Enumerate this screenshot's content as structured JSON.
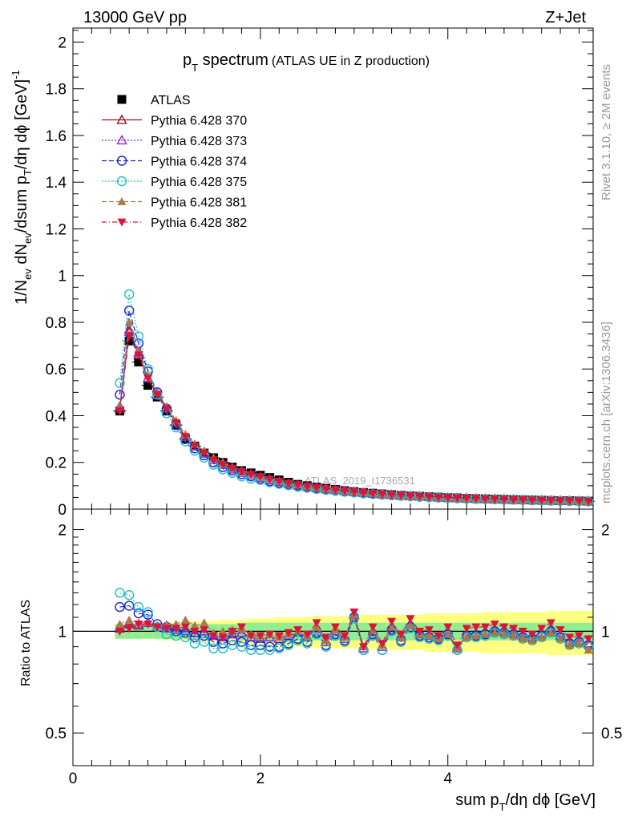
{
  "header": {
    "left": "13000 GeV pp",
    "right": "Z+Jet"
  },
  "plot_title": {
    "main": "p",
    "sub": "T",
    "rest": " spectrum",
    "detail": "(ATLAS UE in Z production)"
  },
  "side_labels": {
    "rivet": "Rivet 3.1.10, ≥ 2M events",
    "mcplots": "mcplots.cern.ch [arXiv:1306.3436]"
  },
  "watermark": "ATLAS_2019_I1736531",
  "colors": {
    "ATLAS": "#000000",
    "p370": "#8b1a1a",
    "p373": "#8a2be2",
    "p374": "#1c1cd6",
    "p375": "#20c0c0",
    "p381": "#a87a48",
    "p382": "#dc143c",
    "band_inner": "#90ee90",
    "band_outer": "#ffff80"
  },
  "chart_data": [
    {
      "type": "line",
      "title": "pT spectrum (ATLAS UE in Z production)",
      "xlabel": "sum pT/dη dφ [GeV]",
      "ylabel": "1/Nev dNev/dsum pT/dη dφ [GeV]^-1",
      "xlim": [
        0,
        5.55
      ],
      "ylim": [
        0,
        2.06
      ],
      "x_ticks": [
        0,
        2,
        4
      ],
      "y_ticks": [
        "0",
        "0.2",
        "0.4",
        "0.6",
        "0.8",
        "1",
        "1.2",
        "1.4",
        "1.6",
        "1.8",
        "2"
      ],
      "legend_position": "top-left",
      "x": [
        0.5,
        0.6,
        0.7,
        0.8,
        0.9,
        1.0,
        1.1,
        1.2,
        1.3,
        1.4,
        1.5,
        1.6,
        1.7,
        1.8,
        1.9,
        2.0,
        2.1,
        2.2,
        2.3,
        2.4,
        2.5,
        2.6,
        2.7,
        2.8,
        2.9,
        3.0,
        3.1,
        3.2,
        3.3,
        3.4,
        3.5,
        3.6,
        3.7,
        3.8,
        3.9,
        4.0,
        4.1,
        4.2,
        4.3,
        4.4,
        4.5,
        4.6,
        4.7,
        4.8,
        4.9,
        5.0,
        5.1,
        5.2,
        5.3,
        5.4,
        5.5
      ],
      "series": [
        {
          "name": "ATLAS",
          "marker": "square",
          "values": [
            0.42,
            0.72,
            0.63,
            0.53,
            0.48,
            0.42,
            0.36,
            0.3,
            0.27,
            0.24,
            0.22,
            0.2,
            0.18,
            0.165,
            0.155,
            0.145,
            0.135,
            0.125,
            0.115,
            0.106,
            0.1,
            0.094,
            0.089,
            0.084,
            0.079,
            0.075,
            0.071,
            0.068,
            0.065,
            0.062,
            0.059,
            0.057,
            0.055,
            0.053,
            0.051,
            0.049,
            0.048,
            0.046,
            0.045,
            0.044,
            0.043,
            0.042,
            0.041,
            0.04,
            0.039,
            0.038,
            0.037,
            0.036,
            0.036,
            0.035,
            0.034
          ]
        },
        {
          "name": "Pythia 6.428 370",
          "marker": "triangle-open",
          "line": "solid",
          "values": [
            0.43,
            0.76,
            0.66,
            0.56,
            0.49,
            0.43,
            0.37,
            0.31,
            0.27,
            0.24,
            0.21,
            0.19,
            0.17,
            0.155,
            0.145,
            0.135,
            0.125,
            0.116,
            0.108,
            0.101,
            0.095,
            0.09,
            0.085,
            0.081,
            0.077,
            0.073,
            0.069,
            0.066,
            0.063,
            0.061,
            0.058,
            0.056,
            0.054,
            0.052,
            0.05,
            0.049,
            0.047,
            0.046,
            0.045,
            0.044,
            0.043,
            0.042,
            0.041,
            0.04,
            0.039,
            0.038,
            0.037,
            0.036,
            0.035,
            0.035,
            0.034
          ]
        },
        {
          "name": "Pythia 6.428 373",
          "marker": "triangle-open",
          "line": "dotted",
          "values": [
            0.44,
            0.77,
            0.67,
            0.56,
            0.49,
            0.43,
            0.37,
            0.31,
            0.27,
            0.24,
            0.21,
            0.19,
            0.17,
            0.155,
            0.145,
            0.135,
            0.125,
            0.116,
            0.108,
            0.101,
            0.095,
            0.09,
            0.085,
            0.081,
            0.077,
            0.073,
            0.069,
            0.066,
            0.063,
            0.061,
            0.058,
            0.056,
            0.054,
            0.052,
            0.05,
            0.049,
            0.047,
            0.046,
            0.045,
            0.044,
            0.043,
            0.042,
            0.041,
            0.04,
            0.039,
            0.038,
            0.037,
            0.036,
            0.035,
            0.035,
            0.034
          ]
        },
        {
          "name": "Pythia 6.428 374",
          "marker": "circle-open",
          "line": "dashed",
          "values": [
            0.49,
            0.85,
            0.71,
            0.59,
            0.5,
            0.43,
            0.36,
            0.3,
            0.26,
            0.23,
            0.2,
            0.18,
            0.165,
            0.15,
            0.14,
            0.13,
            0.12,
            0.112,
            0.105,
            0.099,
            0.093,
            0.088,
            0.083,
            0.079,
            0.075,
            0.072,
            0.068,
            0.065,
            0.062,
            0.06,
            0.057,
            0.055,
            0.053,
            0.051,
            0.05,
            0.048,
            0.047,
            0.045,
            0.044,
            0.043,
            0.042,
            0.041,
            0.04,
            0.039,
            0.038,
            0.037,
            0.036,
            0.035,
            0.035,
            0.034,
            0.033
          ]
        },
        {
          "name": "Pythia 6.428 375",
          "marker": "circle-open",
          "line": "dotted",
          "values": [
            0.54,
            0.92,
            0.74,
            0.6,
            0.49,
            0.41,
            0.35,
            0.29,
            0.25,
            0.22,
            0.19,
            0.17,
            0.155,
            0.14,
            0.13,
            0.125,
            0.115,
            0.108,
            0.102,
            0.096,
            0.091,
            0.086,
            0.082,
            0.078,
            0.074,
            0.071,
            0.067,
            0.064,
            0.062,
            0.059,
            0.057,
            0.055,
            0.053,
            0.051,
            0.049,
            0.048,
            0.046,
            0.045,
            0.044,
            0.043,
            0.042,
            0.041,
            0.04,
            0.039,
            0.038,
            0.037,
            0.036,
            0.035,
            0.034,
            0.034,
            0.033
          ]
        },
        {
          "name": "Pythia 6.428 381",
          "marker": "triangle-filled",
          "line": "dashed",
          "values": [
            0.44,
            0.8,
            0.68,
            0.57,
            0.5,
            0.44,
            0.38,
            0.32,
            0.28,
            0.25,
            0.22,
            0.2,
            0.18,
            0.165,
            0.152,
            0.14,
            0.13,
            0.12,
            0.112,
            0.104,
            0.098,
            0.092,
            0.087,
            0.082,
            0.078,
            0.074,
            0.07,
            0.067,
            0.064,
            0.061,
            0.059,
            0.056,
            0.054,
            0.052,
            0.05,
            0.049,
            0.047,
            0.046,
            0.045,
            0.044,
            0.043,
            0.042,
            0.041,
            0.04,
            0.039,
            0.038,
            0.037,
            0.036,
            0.035,
            0.034,
            0.033
          ]
        },
        {
          "name": "Pythia 6.428 382",
          "marker": "triangle-down-filled",
          "line": "dashdot",
          "values": [
            0.42,
            0.74,
            0.66,
            0.56,
            0.49,
            0.43,
            0.37,
            0.31,
            0.27,
            0.24,
            0.21,
            0.19,
            0.175,
            0.16,
            0.148,
            0.138,
            0.128,
            0.119,
            0.111,
            0.104,
            0.098,
            0.092,
            0.087,
            0.083,
            0.079,
            0.075,
            0.071,
            0.068,
            0.065,
            0.062,
            0.06,
            0.057,
            0.055,
            0.053,
            0.051,
            0.05,
            0.048,
            0.047,
            0.046,
            0.044,
            0.043,
            0.042,
            0.041,
            0.04,
            0.039,
            0.038,
            0.037,
            0.036,
            0.036,
            0.035,
            0.034
          ]
        }
      ]
    },
    {
      "type": "line",
      "title": "",
      "xlabel": "sum pT/dη dφ [GeV]",
      "ylabel": "Ratio to ATLAS",
      "xlim": [
        0,
        5.55
      ],
      "ylim": [
        0.4,
        2.3
      ],
      "y_scale": "log",
      "x_tick_labels": [
        "0",
        "2",
        "4"
      ],
      "y_tick_labels": [
        "0.5",
        "1",
        "2"
      ],
      "reference_line": 1,
      "band_inner_halfwidth": [
        0.05,
        0.05,
        0.05,
        0.05,
        0.05,
        0.05,
        0.05,
        0.05,
        0.05,
        0.05,
        0.05,
        0.05,
        0.05,
        0.06,
        0.06,
        0.06,
        0.06,
        0.06,
        0.06,
        0.06,
        0.06,
        0.06,
        0.06,
        0.06,
        0.06,
        0.06,
        0.06,
        0.06,
        0.06,
        0.06,
        0.06,
        0.06,
        0.06,
        0.06,
        0.06,
        0.06,
        0.06,
        0.06,
        0.06,
        0.06,
        0.06,
        0.06,
        0.06,
        0.06,
        0.06,
        0.06,
        0.06,
        0.06,
        0.06,
        0.06,
        0.06
      ],
      "band_outer_halfwidth": [
        0.05,
        0.05,
        0.05,
        0.05,
        0.05,
        0.06,
        0.06,
        0.06,
        0.07,
        0.07,
        0.07,
        0.08,
        0.08,
        0.08,
        0.09,
        0.09,
        0.09,
        0.1,
        0.1,
        0.1,
        0.1,
        0.11,
        0.11,
        0.11,
        0.11,
        0.11,
        0.12,
        0.12,
        0.12,
        0.12,
        0.12,
        0.12,
        0.12,
        0.13,
        0.13,
        0.13,
        0.13,
        0.13,
        0.13,
        0.14,
        0.14,
        0.14,
        0.14,
        0.14,
        0.14,
        0.14,
        0.15,
        0.15,
        0.15,
        0.15,
        0.15
      ],
      "x": [
        0.5,
        0.6,
        0.7,
        0.8,
        0.9,
        1.0,
        1.1,
        1.2,
        1.3,
        1.4,
        1.5,
        1.6,
        1.7,
        1.8,
        1.9,
        2.0,
        2.1,
        2.2,
        2.3,
        2.4,
        2.5,
        2.6,
        2.7,
        2.8,
        2.9,
        3.0,
        3.1,
        3.2,
        3.3,
        3.4,
        3.5,
        3.6,
        3.7,
        3.8,
        3.9,
        4.0,
        4.1,
        4.2,
        4.3,
        4.4,
        4.5,
        4.6,
        4.7,
        4.8,
        4.9,
        5.0,
        5.1,
        5.2,
        5.3,
        5.4,
        5.5
      ],
      "series": [
        {
          "name": "Pythia 6.428 370",
          "values": [
            1.02,
            1.05,
            1.04,
            1.06,
            1.03,
            1.02,
            1.01,
            1.0,
            0.99,
            1.0,
            0.97,
            0.96,
            0.98,
            0.99,
            0.96,
            0.95,
            0.96,
            0.95,
            0.97,
            0.99,
            0.96,
            1.02,
            0.93,
            1.0,
            0.95,
            1.12,
            0.89,
            1.0,
            0.9,
            1.03,
            0.96,
            1.05,
            0.98,
            0.97,
            0.96,
            0.99,
            0.89,
            0.98,
            0.99,
            1.0,
            1.01,
            1.0,
            0.99,
            0.97,
            0.96,
            0.99,
            1.02,
            0.97,
            0.93,
            0.94,
            0.92
          ]
        },
        {
          "name": "Pythia 6.428 373",
          "values": [
            1.03,
            1.06,
            1.05,
            1.06,
            1.03,
            1.02,
            1.01,
            1.0,
            0.99,
            1.0,
            0.97,
            0.96,
            0.98,
            0.99,
            0.96,
            0.95,
            0.96,
            0.95,
            0.97,
            0.99,
            0.96,
            1.02,
            0.93,
            1.0,
            0.95,
            1.12,
            0.89,
            1.0,
            0.9,
            1.03,
            0.96,
            1.05,
            0.98,
            0.97,
            0.96,
            0.99,
            0.89,
            0.98,
            0.99,
            1.0,
            1.01,
            1.0,
            0.99,
            0.97,
            0.96,
            0.99,
            1.02,
            0.97,
            0.93,
            0.94,
            0.92
          ]
        },
        {
          "name": "Pythia 6.428 374",
          "values": [
            1.18,
            1.19,
            1.13,
            1.12,
            1.05,
            1.03,
            1.0,
            0.99,
            0.96,
            0.97,
            0.93,
            0.92,
            0.94,
            0.93,
            0.91,
            0.91,
            0.9,
            0.9,
            0.92,
            0.95,
            0.93,
            0.99,
            0.91,
            0.98,
            0.94,
            1.1,
            0.88,
            0.98,
            0.88,
            1.01,
            0.94,
            1.03,
            0.97,
            0.96,
            0.95,
            0.98,
            0.88,
            0.97,
            0.97,
            0.98,
            1.0,
            0.99,
            0.98,
            0.96,
            0.95,
            0.97,
            1.0,
            0.96,
            0.92,
            0.93,
            0.91
          ]
        },
        {
          "name": "Pythia 6.428 375",
          "values": [
            1.3,
            1.28,
            1.18,
            1.14,
            1.03,
            0.98,
            0.97,
            0.96,
            0.92,
            0.93,
            0.89,
            0.89,
            0.91,
            0.9,
            0.88,
            0.88,
            0.88,
            0.89,
            0.91,
            0.94,
            0.92,
            0.98,
            0.9,
            0.97,
            0.93,
            1.09,
            0.88,
            0.97,
            0.88,
            1.0,
            0.93,
            1.02,
            0.96,
            0.95,
            0.94,
            0.97,
            0.88,
            0.96,
            0.96,
            0.97,
            0.99,
            0.98,
            0.97,
            0.95,
            0.94,
            0.96,
            0.99,
            0.95,
            0.91,
            0.92,
            0.9
          ]
        },
        {
          "name": "Pythia 6.428 381",
          "values": [
            1.05,
            1.08,
            1.06,
            1.06,
            1.04,
            1.05,
            1.05,
            1.08,
            1.04,
            1.06,
            0.99,
            1.0,
            1.01,
            1.02,
            0.98,
            0.97,
            0.98,
            0.96,
            0.98,
            1.0,
            0.97,
            1.03,
            0.94,
            1.01,
            0.96,
            1.12,
            0.9,
            1.01,
            0.91,
            1.03,
            0.96,
            1.04,
            0.98,
            0.97,
            0.95,
            0.98,
            0.89,
            0.96,
            0.97,
            0.98,
            0.99,
            0.98,
            0.97,
            0.95,
            0.94,
            0.96,
            0.99,
            0.95,
            0.91,
            0.92,
            0.88
          ]
        },
        {
          "name": "Pythia 6.428 382",
          "values": [
            1.0,
            1.02,
            1.05,
            1.05,
            1.03,
            1.02,
            1.02,
            1.03,
            1.0,
            1.01,
            0.97,
            0.96,
            1.0,
            1.03,
            0.97,
            0.97,
            0.98,
            0.97,
            0.99,
            1.01,
            0.98,
            1.06,
            0.96,
            1.03,
            0.97,
            1.14,
            0.9,
            1.03,
            0.92,
            1.07,
            0.98,
            1.09,
            1.0,
            1.01,
            0.97,
            1.03,
            0.91,
            1.02,
            1.03,
            1.03,
            1.05,
            1.03,
            1.02,
            1.0,
            0.98,
            1.02,
            1.06,
            1.01,
            0.96,
            0.97,
            0.95
          ]
        }
      ]
    }
  ],
  "legend": [
    {
      "label": "ATLAS",
      "key": "ATLAS"
    },
    {
      "label": "Pythia 6.428 370",
      "key": "p370"
    },
    {
      "label": "Pythia 6.428 373",
      "key": "p373"
    },
    {
      "label": "Pythia 6.428 374",
      "key": "p374"
    },
    {
      "label": "Pythia 6.428 375",
      "key": "p375"
    },
    {
      "label": "Pythia 6.428 381",
      "key": "p381"
    },
    {
      "label": "Pythia 6.428 382",
      "key": "p382"
    }
  ],
  "axis_labels": {
    "x_main": "sum p",
    "x_sub": "T",
    "x_rest": "/dη dϕ [GeV]",
    "y_top": "1/N",
    "y_ev": "ev",
    "y_mid": " dN",
    "y_mid2": "/dsum p",
    "y_T": "T",
    "y_rest": "/dη dϕ  [GeV]",
    "y_exp": "-1",
    "y_ratio": "Ratio to ATLAS"
  }
}
